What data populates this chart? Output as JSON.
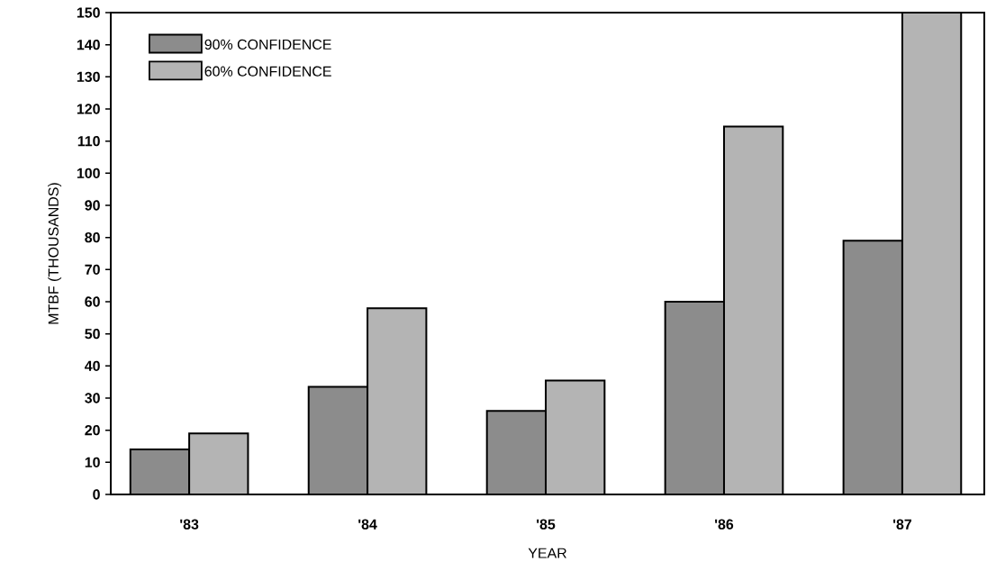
{
  "chart_data": {
    "type": "bar",
    "xlabel": "YEAR",
    "ylabel": "MTBF (THOUSANDS)",
    "categories": [
      "'83",
      "'84",
      "'85",
      "'86",
      "'87"
    ],
    "series": [
      {
        "name": "90% CONFIDENCE",
        "color": "#8c8c8c",
        "values": [
          14,
          33.5,
          26,
          60,
          79
        ]
      },
      {
        "name": "60% CONFIDENCE",
        "color": "#b4b4b4",
        "values": [
          19,
          58,
          35.5,
          114.5,
          150
        ]
      }
    ],
    "ylim": [
      0,
      150
    ],
    "yticks": [
      0,
      10,
      20,
      30,
      40,
      50,
      60,
      70,
      80,
      90,
      100,
      110,
      120,
      130,
      140,
      150
    ],
    "grid": false,
    "legend": "top left"
  }
}
